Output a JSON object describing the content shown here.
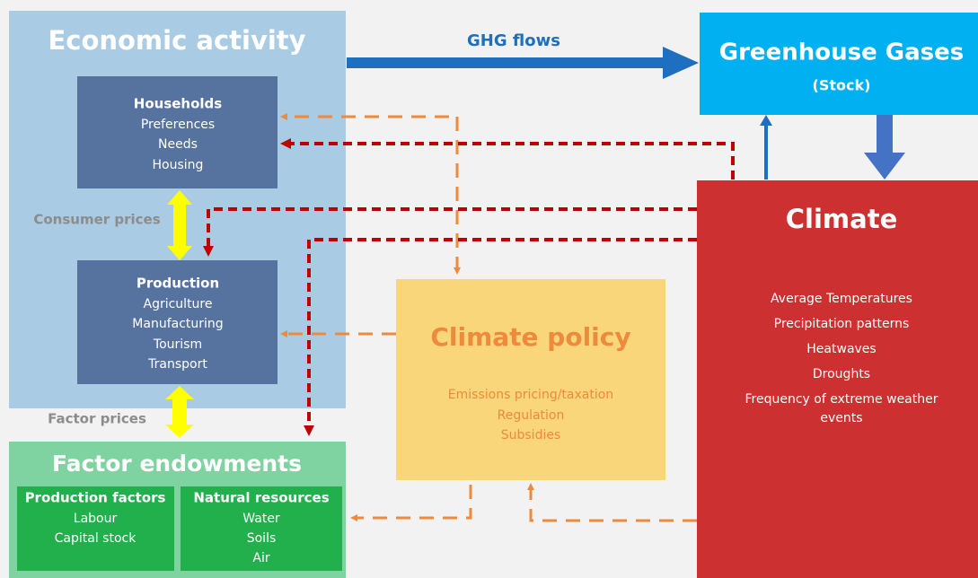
{
  "economic_activity": {
    "title": "Economic activity",
    "households": {
      "title": "Households",
      "items": [
        "Preferences",
        "Needs",
        "Housing"
      ]
    },
    "production": {
      "title": "Production",
      "items": [
        "Agriculture",
        "Manufacturing",
        "Tourism",
        "Transport"
      ]
    },
    "consumer_prices": "Consumer prices",
    "factor_prices": "Factor prices"
  },
  "factor_endowments": {
    "title": "Factor endowments",
    "production_factors": {
      "title": "Production factors",
      "items": [
        "Labour",
        "Capital stock"
      ]
    },
    "natural_resources": {
      "title": "Natural resources",
      "items": [
        "Water",
        "Soils",
        "Air"
      ]
    }
  },
  "ghg_flows": "GHG flows",
  "greenhouse_gases": {
    "title": "Greenhouse Gases",
    "subtitle": "(Stock)"
  },
  "climate": {
    "title": "Climate",
    "items": [
      "Average Temperatures",
      "Precipitation patterns",
      "Heatwaves",
      "Droughts",
      "Frequency of extreme weather",
      "events"
    ]
  },
  "climate_policy": {
    "title": "Climate policy",
    "items": [
      "Emissions pricing/taxation",
      "Regulation",
      "Subsidies"
    ]
  }
}
